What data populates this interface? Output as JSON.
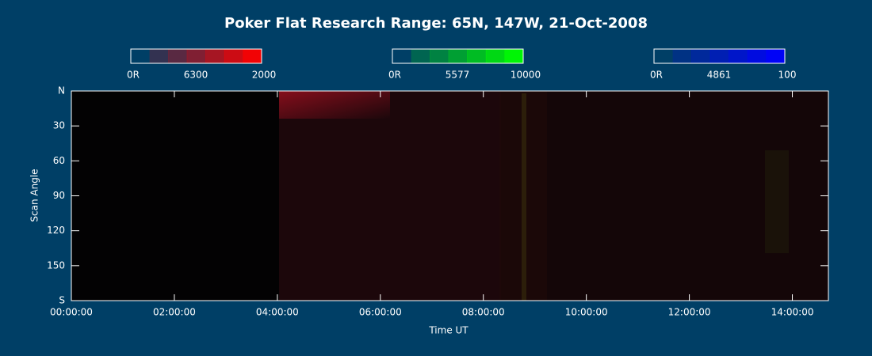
{
  "chart_data": {
    "type": "keogram",
    "title": "Poker Flat Research Range: 65N, 147W, 21-Oct-2008",
    "xlabel": "Time UT",
    "ylabel": "Scan Angle",
    "xlim": [
      0,
      14.7
    ],
    "xticks": [
      {
        "value": 0,
        "label": "00:00:00"
      },
      {
        "value": 2,
        "label": "02:00:00"
      },
      {
        "value": 4,
        "label": "04:00:00"
      },
      {
        "value": 6,
        "label": "06:00:00"
      },
      {
        "value": 8,
        "label": "08:00:00"
      },
      {
        "value": 10,
        "label": "10:00:00"
      },
      {
        "value": 12,
        "label": "12:00:00"
      },
      {
        "value": 14,
        "label": "14:00:00"
      }
    ],
    "ylim": [
      0,
      180
    ],
    "yticks": [
      {
        "value": 0,
        "label": "N"
      },
      30,
      60,
      90,
      120,
      150,
      {
        "value": 180,
        "label": "S"
      }
    ],
    "colorbars": [
      {
        "min_label": "0R",
        "wavelength": "6300",
        "max": 2000,
        "color": "#ff0000"
      },
      {
        "min_label": "0R",
        "wavelength": "5577",
        "max": 10000,
        "color": "#00ff00"
      },
      {
        "min_label": "0R",
        "wavelength": "4861",
        "max": 100,
        "color": "#0000ff"
      }
    ]
  }
}
